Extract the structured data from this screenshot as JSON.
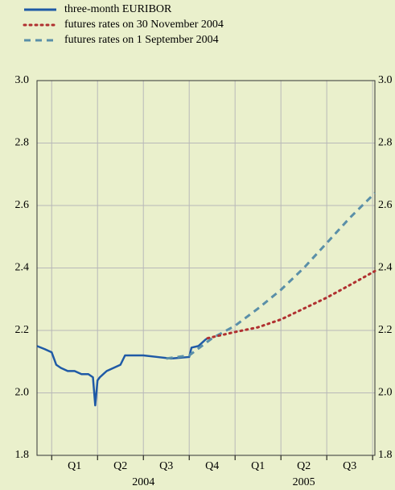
{
  "chart_data": {
    "type": "line",
    "ylim": [
      1.8,
      3.0
    ],
    "yticks": [
      {
        "value": 1.8,
        "label": "1.8"
      },
      {
        "value": 2.0,
        "label": "2.0"
      },
      {
        "value": 2.2,
        "label": "2.2"
      },
      {
        "value": 2.4,
        "label": "2.4"
      },
      {
        "value": 2.6,
        "label": "2.6"
      },
      {
        "value": 2.8,
        "label": "2.8"
      },
      {
        "value": 3.0,
        "label": "3.0"
      }
    ],
    "xlim": [
      -0.32,
      7.05
    ],
    "xticks": [
      0,
      1,
      2,
      3,
      4,
      5,
      6,
      7
    ],
    "quarter_labels": [
      {
        "value": 0.5,
        "label": "Q1"
      },
      {
        "value": 1.5,
        "label": "Q2"
      },
      {
        "value": 2.5,
        "label": "Q3"
      },
      {
        "value": 3.5,
        "label": "Q4"
      },
      {
        "value": 4.5,
        "label": "Q1"
      },
      {
        "value": 5.5,
        "label": "Q2"
      },
      {
        "value": 6.5,
        "label": "Q3"
      }
    ],
    "year_labels": [
      {
        "value": 2,
        "label": "2004"
      },
      {
        "value": 5.5,
        "label": "2005"
      }
    ],
    "grid": true,
    "series": [
      {
        "name": "three-month EURIBOR",
        "color": "#1f5aa6",
        "dash": "solid",
        "x": [
          -0.32,
          -0.15,
          0.0,
          0.1,
          0.2,
          0.35,
          0.5,
          0.65,
          0.8,
          0.9,
          0.95,
          1.0,
          1.05,
          1.2,
          1.35,
          1.5,
          1.6,
          1.8,
          2.0,
          2.3,
          2.6,
          3.0,
          3.05,
          3.2,
          3.35,
          3.4
        ],
        "values": [
          2.15,
          2.14,
          2.13,
          2.09,
          2.08,
          2.07,
          2.07,
          2.06,
          2.06,
          2.05,
          1.96,
          2.04,
          2.05,
          2.07,
          2.08,
          2.09,
          2.12,
          2.12,
          2.12,
          2.115,
          2.11,
          2.115,
          2.145,
          2.15,
          2.17,
          2.175
        ]
      },
      {
        "name": "futures rates on 30 November 2004",
        "color": "#b03030",
        "dash": "dotted",
        "x": [
          3.4,
          4.0,
          4.5,
          5.0,
          5.5,
          6.0,
          6.5,
          7.05
        ],
        "values": [
          2.175,
          2.195,
          2.21,
          2.235,
          2.27,
          2.305,
          2.345,
          2.39
        ]
      },
      {
        "name": "futures rates on 1 September 2004",
        "color": "#5a8fa8",
        "dash": "dashed",
        "x": [
          2.5,
          3.0,
          3.5,
          4.0,
          4.5,
          5.0,
          5.5,
          6.0,
          6.5,
          7.05
        ],
        "values": [
          2.11,
          2.12,
          2.175,
          2.215,
          2.27,
          2.33,
          2.4,
          2.48,
          2.56,
          2.64
        ]
      }
    ]
  }
}
